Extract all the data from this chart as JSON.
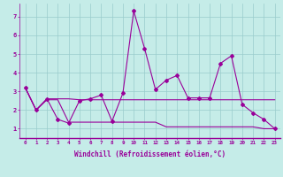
{
  "xlabel": "Windchill (Refroidissement éolien,°C)",
  "background_color": "#c5ece8",
  "grid_color": "#99cccc",
  "line_color": "#990099",
  "xlim": [
    -0.5,
    23.5
  ],
  "ylim": [
    0.5,
    7.7
  ],
  "yticks": [
    1,
    2,
    3,
    4,
    5,
    6,
    7
  ],
  "xticks": [
    0,
    1,
    2,
    3,
    4,
    5,
    6,
    7,
    8,
    9,
    10,
    11,
    12,
    13,
    14,
    15,
    16,
    17,
    18,
    19,
    20,
    21,
    22,
    23
  ],
  "series1_x": [
    0,
    1,
    2,
    3,
    4,
    5,
    6,
    7,
    8,
    9,
    10,
    11,
    12,
    13,
    14,
    15,
    16,
    17,
    18,
    19,
    20,
    21,
    22,
    23
  ],
  "series1_y": [
    3.2,
    2.0,
    2.6,
    1.5,
    1.3,
    2.5,
    2.6,
    2.8,
    1.4,
    2.9,
    7.3,
    5.3,
    3.1,
    3.6,
    3.85,
    2.65,
    2.65,
    2.65,
    4.5,
    4.9,
    2.3,
    1.85,
    1.5,
    1.0
  ],
  "series2_x": [
    0,
    1,
    2,
    3,
    4,
    5,
    6,
    7,
    8,
    9,
    10,
    11,
    12,
    13,
    14,
    15,
    16,
    17,
    18,
    19,
    20,
    21,
    22,
    23
  ],
  "series2_y": [
    3.2,
    2.0,
    2.6,
    2.6,
    2.6,
    2.55,
    2.55,
    2.55,
    2.55,
    2.55,
    2.55,
    2.55,
    2.55,
    2.55,
    2.55,
    2.55,
    2.55,
    2.55,
    2.55,
    2.55,
    2.55,
    2.55,
    2.55,
    2.55
  ],
  "series3_x": [
    0,
    1,
    2,
    3,
    4,
    5,
    6,
    7,
    8,
    9,
    10,
    11,
    12,
    13,
    14,
    15,
    16,
    17,
    18,
    19,
    20,
    21,
    22,
    23
  ],
  "series3_y": [
    3.2,
    2.0,
    2.55,
    2.55,
    1.35,
    1.35,
    1.35,
    1.35,
    1.35,
    1.35,
    1.35,
    1.35,
    1.35,
    1.1,
    1.1,
    1.1,
    1.1,
    1.1,
    1.1,
    1.1,
    1.1,
    1.1,
    1.0,
    1.0
  ]
}
